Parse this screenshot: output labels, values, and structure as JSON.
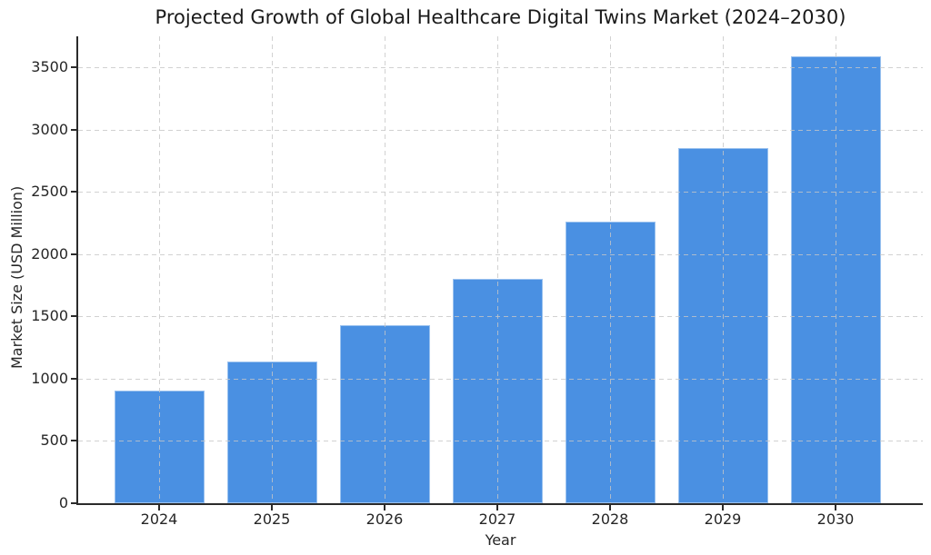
{
  "chart_data": {
    "type": "bar",
    "title": "Projected Growth of Global Healthcare Digital Twins Market (2024–2030)",
    "xlabel": "Year",
    "ylabel": "Market Size (USD Million)",
    "categories": [
      "2024",
      "2025",
      "2026",
      "2027",
      "2028",
      "2029",
      "2030"
    ],
    "values": [
      905,
      1140,
      1430,
      1800,
      2265,
      2850,
      3590
    ],
    "series_name": "Market Size (USD Million)",
    "yticks": [
      0,
      500,
      1000,
      1500,
      2000,
      2500,
      3000,
      3500
    ],
    "ylim": [
      0,
      3750
    ],
    "grid": "dashed, horizontal and vertical, drawn over bars",
    "legend_position": "none",
    "colors": {
      "bar": "#4a90e2",
      "grid": "#c6c6c6",
      "spine": "#2b2b2b",
      "text": "#262626",
      "background": "#ffffff"
    }
  }
}
